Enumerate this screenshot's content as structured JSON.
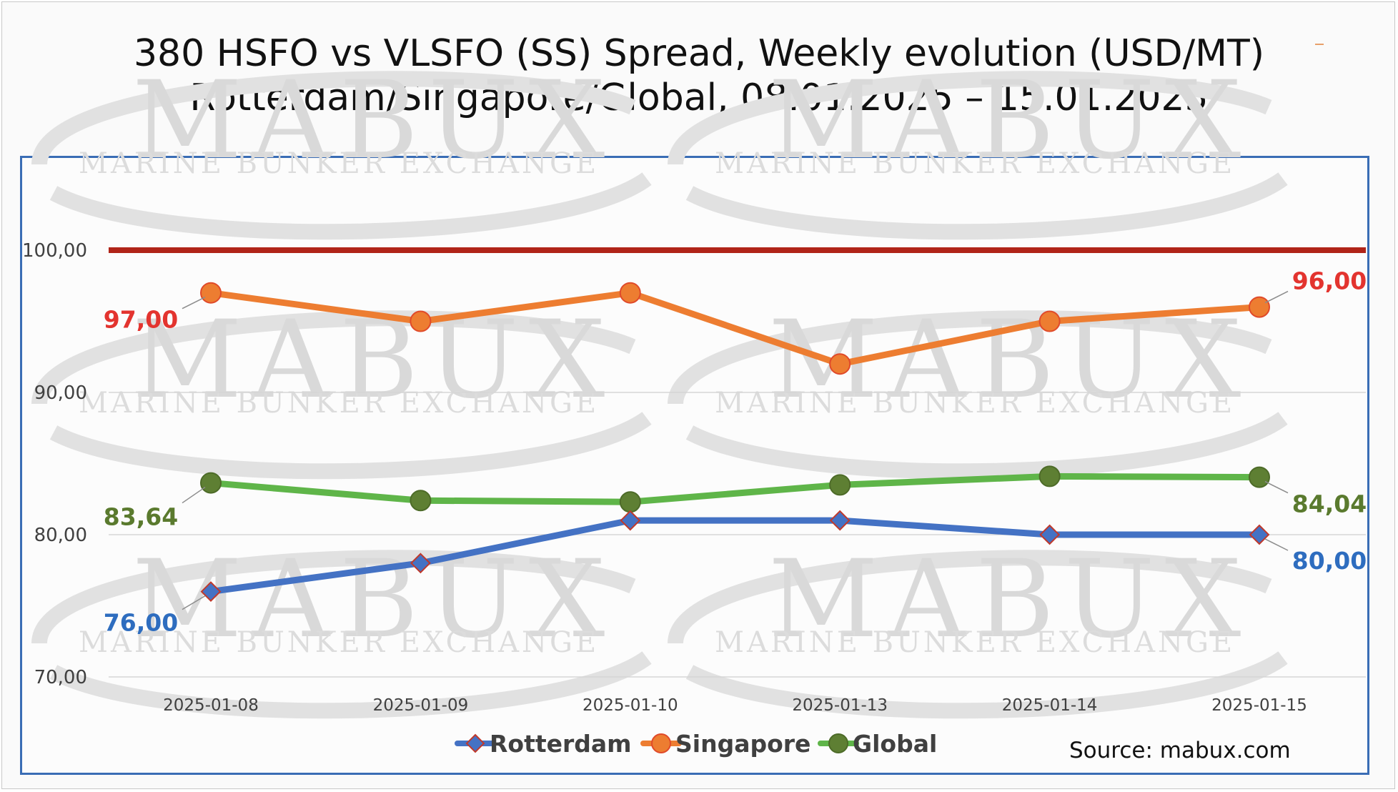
{
  "title": {
    "line1": "380 HSFO vs VLSFO (SS) Spread, Weekly evolution (USD/MT)",
    "line2": "Rotterdam/Singapore/Global, 08.01.2025 – 15.01.2025"
  },
  "source": "Source: mabux.com",
  "watermark": {
    "brand": "MABUX",
    "tagline": "MARINE BUNKER EXCHANGE"
  },
  "colors": {
    "rotterdam": "#4472c4",
    "singapore": "#ed7d31",
    "global": "#5fb549",
    "reference_line": "#b02418",
    "rotterdam_label": "#2e6dbf",
    "singapore_label": "#e3342f",
    "global_label": "#5a7a2e"
  },
  "chart_data": {
    "type": "line",
    "categories": [
      "2025-01-08",
      "2025-01-09",
      "2025-01-10",
      "2025-01-13",
      "2025-01-14",
      "2025-01-15"
    ],
    "ylim": [
      70,
      104
    ],
    "y_ticks": [
      {
        "value": 70,
        "label": "70,00"
      },
      {
        "value": 80,
        "label": "80,00"
      },
      {
        "value": 90,
        "label": "90,00"
      },
      {
        "value": 100,
        "label": "100,00"
      }
    ],
    "reference_line": {
      "value": 100
    },
    "grid": true,
    "legend_position": "bottom",
    "series": [
      {
        "name": "Rotterdam",
        "marker": "diamond",
        "values": [
          76,
          78,
          81,
          81,
          80,
          80
        ],
        "first_label": "76,00",
        "last_label": "80,00"
      },
      {
        "name": "Singapore",
        "marker": "circle",
        "values": [
          97,
          95,
          97,
          92,
          95,
          96
        ],
        "first_label": "97,00",
        "last_label": "96,00"
      },
      {
        "name": "Global",
        "marker": "circle",
        "values": [
          83.64,
          82.4,
          82.3,
          83.5,
          84.1,
          84.04
        ],
        "first_label": "83,64",
        "last_label": "84,04"
      }
    ]
  }
}
